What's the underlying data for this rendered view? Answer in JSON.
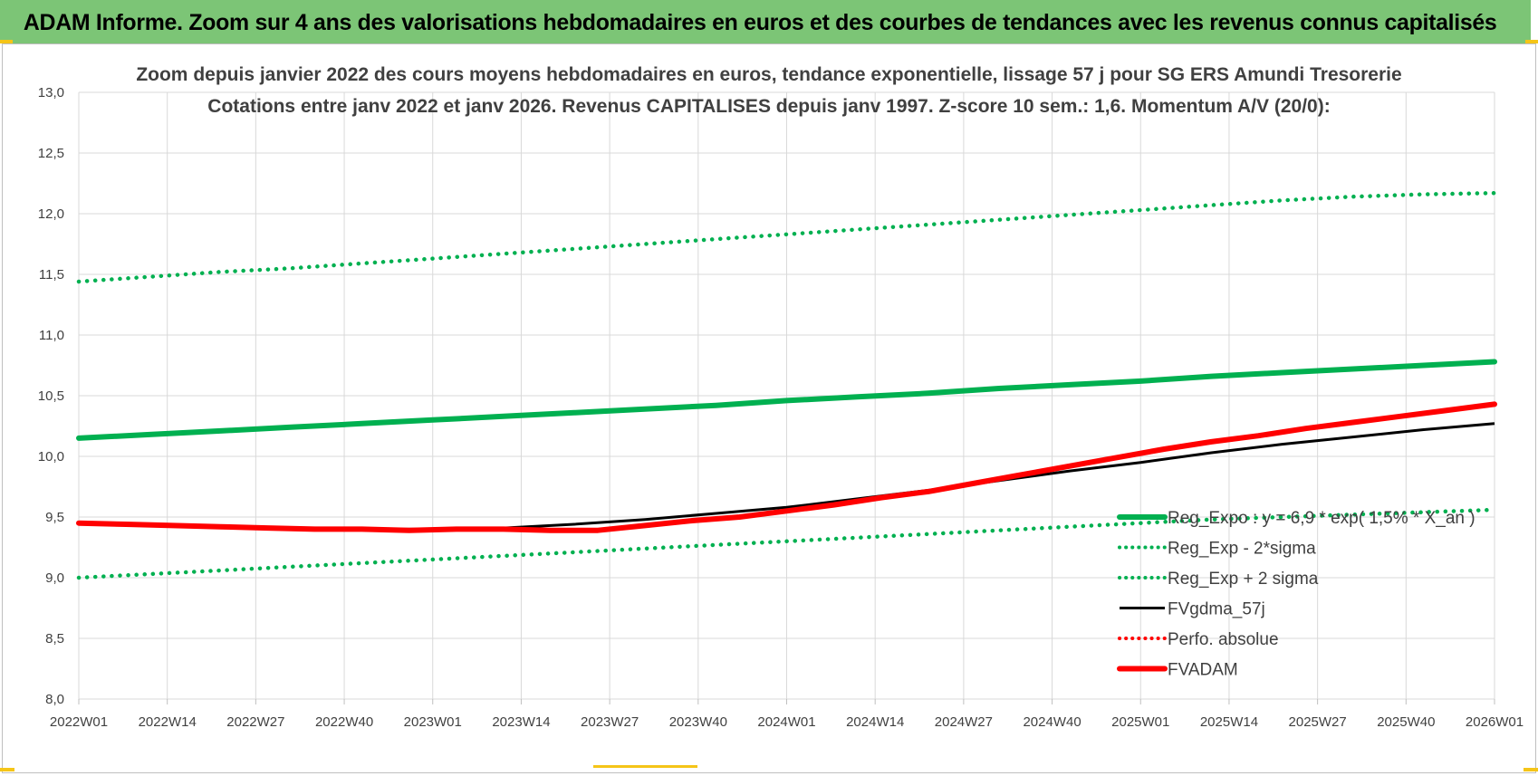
{
  "header": {
    "banner_title": "ADAM Informe. Zoom sur 4 ans des valorisations hebdomadaires en euros et des courbes de tendances avec les revenus connus capitalisés"
  },
  "colors": {
    "banner_bg": "#7cc576",
    "green": "#00b050",
    "red": "#ff0000",
    "black": "#000000",
    "grid": "#d9d9d9",
    "text": "#404040"
  },
  "chart_data": {
    "type": "line",
    "title_line1": "Zoom depuis janvier 2022 des cours moyens hebdomadaires en euros, tendance exponentielle, lissage 57 j pour SG ERS Amundi Tresorerie",
    "title_line2": "Cotations entre janv 2022 et janv 2026. Revenus CAPITALISES depuis janv 1997. Z-score 10 sem.: 1,6. Momentum A/V (20/0):",
    "xlabel": "",
    "ylabel": "",
    "ylim": [
      8.0,
      13.0
    ],
    "y_ticks": [
      "13,0",
      "12,5",
      "12,0",
      "11,5",
      "11,0",
      "10,5",
      "10,0",
      "9,5",
      "9,0",
      "8,5",
      "8,0"
    ],
    "x_ticks": [
      "2022W01",
      "2022W14",
      "2022W27",
      "2022W40",
      "2023W01",
      "2023W14",
      "2023W27",
      "2023W40",
      "2024W01",
      "2024W14",
      "2024W27",
      "2024W40",
      "2025W01",
      "2025W14",
      "2025W27",
      "2025W40",
      "2026W01"
    ],
    "series": [
      {
        "name": "Reg_Expo : y = 6,9 * exp( 1,5% * X_an )",
        "style": "solid-thick",
        "color": "#00b050",
        "values": [
          10.15,
          10.18,
          10.21,
          10.24,
          10.27,
          10.3,
          10.33,
          10.36,
          10.39,
          10.42,
          10.46,
          10.49,
          10.52,
          10.56,
          10.59,
          10.62,
          10.66,
          10.69,
          10.72,
          10.75,
          10.78
        ]
      },
      {
        "name": "Reg_Exp - 2*sigma",
        "style": "dotted",
        "color": "#00b050",
        "values": [
          9.0,
          9.03,
          9.06,
          9.09,
          9.12,
          9.15,
          9.18,
          9.21,
          9.24,
          9.27,
          9.3,
          9.33,
          9.36,
          9.39,
          9.42,
          9.45,
          9.48,
          9.5,
          9.52,
          9.54,
          9.56
        ]
      },
      {
        "name": "Reg_Exp + 2 sigma",
        "style": "dotted",
        "color": "#00b050",
        "values": [
          11.44,
          11.48,
          11.52,
          11.55,
          11.59,
          11.63,
          11.67,
          11.71,
          11.75,
          11.79,
          11.83,
          11.87,
          11.91,
          11.95,
          11.99,
          12.03,
          12.07,
          12.11,
          12.14,
          12.16,
          12.17
        ]
      },
      {
        "name": "FVgdma_57j",
        "style": "solid",
        "color": "#000000",
        "values": [
          9.45,
          9.44,
          9.42,
          9.4,
          9.4,
          9.4,
          9.41,
          9.44,
          9.48,
          9.53,
          9.58,
          9.65,
          9.72,
          9.8,
          9.88,
          9.95,
          10.03,
          10.1,
          10.16,
          10.22,
          10.27
        ]
      },
      {
        "name": "Perfo. absolue",
        "style": "dotted",
        "color": "#ff0000",
        "values": []
      },
      {
        "name": "FVADAM",
        "style": "solid-thick",
        "color": "#ff0000",
        "values": [
          9.45,
          9.44,
          9.43,
          9.42,
          9.41,
          9.4,
          9.4,
          9.39,
          9.4,
          9.4,
          9.39,
          9.39,
          9.43,
          9.47,
          9.5,
          9.55,
          9.6,
          9.66,
          9.71,
          9.78,
          9.85,
          9.92,
          9.99,
          10.06,
          10.12,
          10.17,
          10.23,
          10.28,
          10.33,
          10.38,
          10.43
        ]
      }
    ]
  }
}
